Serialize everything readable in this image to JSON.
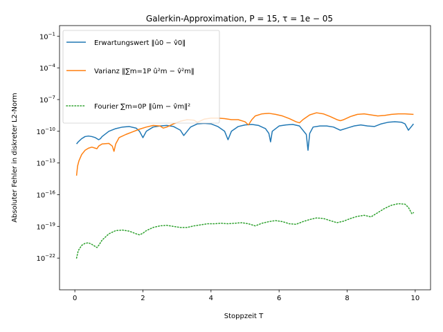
{
  "chart_data": {
    "type": "line",
    "title": "Galerkin-Approximation, P = 15, τ = 1e − 05",
    "xlabel": "Stoppzeit T",
    "ylabel": "Absoluter Fehler in diskreter L2-Norm",
    "yscale": "log",
    "xlim": [
      -0.45,
      10.45
    ],
    "ylim_log10": [
      -25,
      0
    ],
    "xticks": [
      0,
      2,
      4,
      6,
      8,
      10
    ],
    "xtick_labels": [
      "0",
      "2",
      "4",
      "6",
      "8",
      "10"
    ],
    "yticks_log10": [
      -22,
      -19,
      -16,
      -13,
      -10,
      -7,
      -4,
      -1
    ],
    "ytick_labels": [
      "10−22",
      "10−19",
      "10−16",
      "10−13",
      "10−10",
      "10−7",
      "10−4",
      "10−1"
    ],
    "legend_position": "upper-left",
    "series": [
      {
        "name": "Erwartungswert ‖û0 − v̂0‖",
        "color": "#1f77b4",
        "style": "solid",
        "x": [
          0.05,
          0.1,
          0.2,
          0.3,
          0.4,
          0.5,
          0.6,
          0.7,
          0.75,
          0.8,
          1.0,
          1.2,
          1.4,
          1.6,
          1.8,
          1.9,
          2.0,
          2.1,
          2.3,
          2.5,
          2.7,
          2.9,
          3.1,
          3.2,
          3.3,
          3.4,
          3.6,
          3.8,
          4.0,
          4.2,
          4.4,
          4.5,
          4.6,
          4.8,
          5.0,
          5.2,
          5.4,
          5.6,
          5.7,
          5.75,
          5.8,
          6.0,
          6.2,
          6.4,
          6.6,
          6.8,
          6.85,
          6.9,
          7.0,
          7.2,
          7.4,
          7.6,
          7.8,
          8.0,
          8.2,
          8.4,
          8.6,
          8.8,
          9.0,
          9.2,
          9.4,
          9.6,
          9.7,
          9.8,
          9.9,
          9.95
        ],
        "log10_values": [
          -11.2,
          -11.0,
          -10.7,
          -10.5,
          -10.45,
          -10.5,
          -10.6,
          -10.8,
          -10.7,
          -10.5,
          -10.0,
          -9.75,
          -9.6,
          -9.55,
          -9.7,
          -10.0,
          -10.6,
          -10.0,
          -9.6,
          -9.5,
          -9.45,
          -9.55,
          -9.9,
          -10.4,
          -10.0,
          -9.6,
          -9.3,
          -9.25,
          -9.3,
          -9.55,
          -10.0,
          -10.8,
          -10.0,
          -9.55,
          -9.4,
          -9.35,
          -9.45,
          -9.75,
          -10.2,
          -11.0,
          -10.0,
          -9.5,
          -9.4,
          -9.35,
          -9.5,
          -10.3,
          -11.8,
          -10.2,
          -9.6,
          -9.5,
          -9.5,
          -9.6,
          -9.9,
          -9.7,
          -9.5,
          -9.4,
          -9.5,
          -9.55,
          -9.3,
          -9.15,
          -9.1,
          -9.15,
          -9.3,
          -9.9,
          -9.5,
          -9.3
        ]
      },
      {
        "name": "Varianz ‖∑m=1P û²m − v̂²m‖",
        "color": "#ff7f0e",
        "style": "solid",
        "x": [
          0.05,
          0.08,
          0.12,
          0.2,
          0.3,
          0.4,
          0.5,
          0.6,
          0.65,
          0.7,
          0.8,
          1.0,
          1.1,
          1.15,
          1.2,
          1.3,
          1.5,
          1.7,
          1.9,
          2.1,
          2.3,
          2.5,
          2.6,
          2.7,
          2.9,
          3.1,
          3.3,
          3.5,
          3.6,
          3.7,
          3.8,
          4.0,
          4.2,
          4.4,
          4.6,
          4.8,
          5.0,
          5.1,
          5.2,
          5.3,
          5.5,
          5.7,
          5.9,
          6.1,
          6.3,
          6.5,
          6.6,
          6.7,
          6.9,
          7.1,
          7.3,
          7.5,
          7.7,
          7.8,
          7.9,
          8.1,
          8.3,
          8.5,
          8.7,
          8.9,
          9.1,
          9.3,
          9.5,
          9.7,
          9.95
        ],
        "log10_values": [
          -14.2,
          -13.3,
          -12.8,
          -12.2,
          -11.8,
          -11.6,
          -11.5,
          -11.6,
          -11.65,
          -11.4,
          -11.2,
          -11.15,
          -11.4,
          -11.9,
          -11.2,
          -10.6,
          -10.3,
          -10.05,
          -9.8,
          -9.6,
          -9.45,
          -9.5,
          -9.7,
          -9.6,
          -9.3,
          -9.05,
          -8.9,
          -8.95,
          -9.15,
          -9.0,
          -8.85,
          -8.75,
          -8.75,
          -8.8,
          -8.9,
          -8.9,
          -9.1,
          -9.4,
          -8.9,
          -8.55,
          -8.35,
          -8.3,
          -8.4,
          -8.55,
          -8.8,
          -9.1,
          -9.2,
          -8.9,
          -8.45,
          -8.25,
          -8.35,
          -8.6,
          -8.9,
          -9.0,
          -8.9,
          -8.6,
          -8.4,
          -8.35,
          -8.45,
          -8.55,
          -8.5,
          -8.4,
          -8.35,
          -8.35,
          -8.4
        ]
      },
      {
        "name": "Fourier ∑m=0P ‖ûm − v̂m‖²",
        "color": "#2ca02c",
        "style": "dotted",
        "x": [
          0.05,
          0.1,
          0.2,
          0.3,
          0.4,
          0.5,
          0.6,
          0.65,
          0.7,
          0.8,
          1.0,
          1.2,
          1.4,
          1.6,
          1.8,
          1.9,
          2.0,
          2.1,
          2.3,
          2.5,
          2.7,
          2.9,
          3.1,
          3.3,
          3.5,
          3.7,
          3.9,
          4.1,
          4.3,
          4.5,
          4.7,
          4.9,
          5.1,
          5.3,
          5.5,
          5.7,
          5.9,
          6.1,
          6.3,
          6.5,
          6.7,
          6.9,
          7.1,
          7.3,
          7.5,
          7.7,
          7.9,
          8.1,
          8.3,
          8.5,
          8.7,
          8.9,
          9.1,
          9.3,
          9.5,
          9.7,
          9.8,
          9.85,
          9.9,
          9.95
        ],
        "log10_values": [
          -22.0,
          -21.3,
          -20.8,
          -20.6,
          -20.55,
          -20.7,
          -20.9,
          -21.0,
          -20.8,
          -20.3,
          -19.7,
          -19.4,
          -19.35,
          -19.45,
          -19.7,
          -19.8,
          -19.65,
          -19.4,
          -19.1,
          -18.95,
          -18.9,
          -19.0,
          -19.1,
          -19.1,
          -18.95,
          -18.85,
          -18.75,
          -18.75,
          -18.7,
          -18.75,
          -18.7,
          -18.65,
          -18.75,
          -18.95,
          -18.7,
          -18.55,
          -18.45,
          -18.55,
          -18.75,
          -18.8,
          -18.55,
          -18.35,
          -18.2,
          -18.25,
          -18.45,
          -18.65,
          -18.5,
          -18.25,
          -18.05,
          -17.95,
          -18.1,
          -17.7,
          -17.3,
          -17.0,
          -16.85,
          -16.9,
          -17.2,
          -17.5,
          -17.8,
          -17.7
        ]
      }
    ]
  }
}
